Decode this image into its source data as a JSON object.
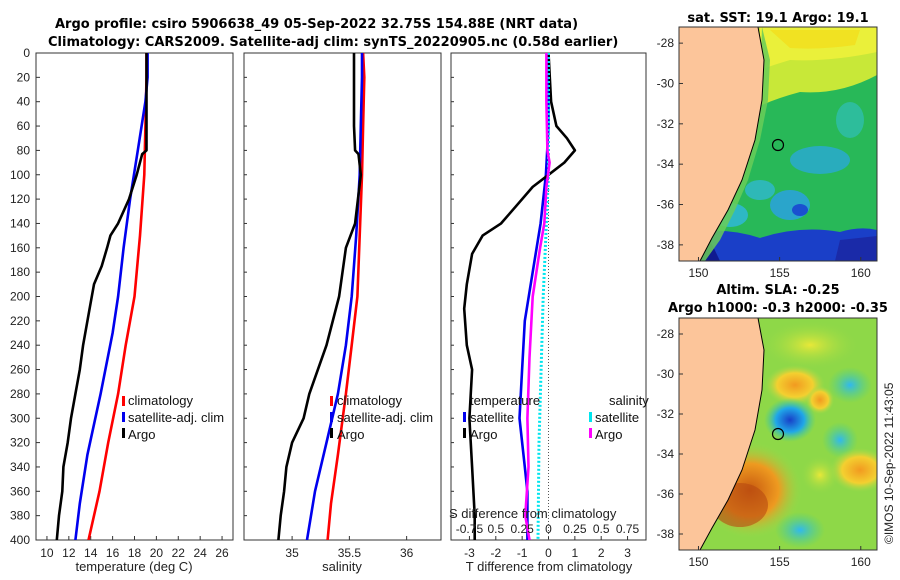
{
  "header": {
    "title_line1": "Argo profile: csiro 5906638_49 05-Sep-2022 32.75S 154.88E (NRT data)",
    "title_line2": "Climatology: CARS2009. Satellite-adj clim: synTS_20220905.nc (0.58d earlier)"
  },
  "watermark": "©IMOS 10-Sep-2022 11:43:05",
  "colors": {
    "climatology": "#ff0000",
    "satellite_adj": "#0000ee",
    "argo": "#000000",
    "sal_sat": "#00e5ee",
    "sal_argo": "#ff00ff",
    "land": "#fcc59a"
  },
  "chart_data": [
    {
      "type": "line",
      "title": "",
      "xlabel": "temperature (deg C)",
      "ylabel": "",
      "xlim": [
        9,
        27
      ],
      "ylim": [
        400,
        0
      ],
      "xticks": [
        "10",
        "12",
        "14",
        "16",
        "18",
        "20",
        "22",
        "24",
        "26"
      ],
      "xtick_values": [
        10,
        12,
        14,
        16,
        18,
        20,
        22,
        24,
        26
      ],
      "yticks": [
        "0",
        "20",
        "40",
        "60",
        "80",
        "100",
        "120",
        "140",
        "160",
        "180",
        "200",
        "220",
        "240",
        "260",
        "280",
        "300",
        "320",
        "340",
        "360",
        "380",
        "400"
      ],
      "legend": [
        "climatology",
        "satellite-adj. clim",
        "Argo"
      ],
      "legend_position": "bottom-right",
      "series": [
        {
          "name": "climatology",
          "color": "#ff0000",
          "points": [
            [
              19.1,
              0
            ],
            [
              19.1,
              20
            ],
            [
              19.0,
              60
            ],
            [
              18.9,
              100
            ],
            [
              18.5,
              150
            ],
            [
              18.0,
              200
            ],
            [
              17.2,
              240
            ],
            [
              16.5,
              280
            ],
            [
              15.6,
              320
            ],
            [
              14.8,
              360
            ],
            [
              13.8,
              400
            ]
          ]
        },
        {
          "name": "satellite-adj. clim",
          "color": "#0000ee",
          "points": [
            [
              19.2,
              0
            ],
            [
              19.2,
              20
            ],
            [
              19.0,
              40
            ],
            [
              18.3,
              80
            ],
            [
              17.6,
              120
            ],
            [
              17.0,
              160
            ],
            [
              16.5,
              200
            ],
            [
              16.0,
              230
            ],
            [
              14.9,
              280
            ],
            [
              13.7,
              330
            ],
            [
              13.0,
              370
            ],
            [
              12.6,
              400
            ]
          ]
        },
        {
          "name": "Argo",
          "color": "#000000",
          "points": [
            [
              19.1,
              0
            ],
            [
              19.1,
              20
            ],
            [
              19.1,
              60
            ],
            [
              19.1,
              80
            ],
            [
              18.7,
              83
            ],
            [
              18.2,
              100
            ],
            [
              17.5,
              120
            ],
            [
              16.5,
              140
            ],
            [
              15.8,
              150
            ],
            [
              15.5,
              160
            ],
            [
              15.0,
              175
            ],
            [
              14.3,
              190
            ],
            [
              13.9,
              210
            ],
            [
              13.3,
              240
            ],
            [
              13.0,
              260
            ],
            [
              12.6,
              280
            ],
            [
              12.2,
              300
            ],
            [
              11.9,
              320
            ],
            [
              11.5,
              340
            ],
            [
              11.4,
              360
            ],
            [
              11.1,
              380
            ],
            [
              10.9,
              400
            ]
          ]
        }
      ]
    },
    {
      "type": "line",
      "title": "",
      "xlabel": "salinity",
      "ylabel": "",
      "xlim": [
        34.58,
        36.3
      ],
      "ylim": [
        400,
        0
      ],
      "xticks": [
        "35",
        "35.5",
        "36"
      ],
      "xtick_values": [
        35,
        35.5,
        36
      ],
      "legend": [
        "climatology",
        "satellite-adj. clim",
        "Argo"
      ],
      "legend_position": "bottom-right",
      "series": [
        {
          "name": "climatology",
          "color": "#ff0000",
          "points": [
            [
              35.62,
              0
            ],
            [
              35.63,
              20
            ],
            [
              35.62,
              60
            ],
            [
              35.61,
              100
            ],
            [
              35.59,
              150
            ],
            [
              35.57,
              200
            ],
            [
              35.52,
              240
            ],
            [
              35.47,
              280
            ],
            [
              35.4,
              330
            ],
            [
              35.34,
              370
            ],
            [
              35.31,
              400
            ]
          ]
        },
        {
          "name": "satellite-adj. clim",
          "color": "#0000ee",
          "points": [
            [
              35.61,
              0
            ],
            [
              35.61,
              20
            ],
            [
              35.6,
              60
            ],
            [
              35.59,
              100
            ],
            [
              35.56,
              150
            ],
            [
              35.52,
              200
            ],
            [
              35.47,
              240
            ],
            [
              35.4,
              280
            ],
            [
              35.3,
              320
            ],
            [
              35.2,
              360
            ],
            [
              35.13,
              400
            ]
          ]
        },
        {
          "name": "Argo",
          "color": "#000000",
          "points": [
            [
              35.54,
              0
            ],
            [
              35.54,
              20
            ],
            [
              35.54,
              60
            ],
            [
              35.55,
              80
            ],
            [
              35.58,
              83
            ],
            [
              35.6,
              100
            ],
            [
              35.55,
              140
            ],
            [
              35.47,
              160
            ],
            [
              35.41,
              200
            ],
            [
              35.3,
              240
            ],
            [
              35.15,
              280
            ],
            [
              35.1,
              300
            ],
            [
              35.0,
              320
            ],
            [
              34.95,
              340
            ],
            [
              34.93,
              360
            ],
            [
              34.9,
              380
            ],
            [
              34.88,
              400
            ]
          ]
        }
      ]
    },
    {
      "type": "line",
      "title": "",
      "xlabel": "T difference from climatology",
      "xlabel_top": "S difference from climatology",
      "ylabel": "",
      "xlim": [
        -3.7,
        3.7
      ],
      "ylim": [
        400,
        0
      ],
      "xticks": [
        "-3",
        "-2",
        "-1",
        "0",
        "1",
        "2",
        "3"
      ],
      "xtick_values": [
        -3,
        -2,
        -1,
        0,
        1,
        2,
        3
      ],
      "s_xticks": [
        "-0.75",
        "0.5",
        "0.25",
        "0",
        "0.25",
        "0.5",
        "0.75"
      ],
      "s_xlim": [
        -0.925,
        0.925
      ],
      "legend_temperature_header": "temperature",
      "legend_salinity_header": "salinity",
      "legend": [
        "satellite",
        "Argo",
        "satellite",
        "Argo"
      ],
      "legend_position": "bottom-center",
      "series": [
        {
          "name": "temperature satellite",
          "color": "#0000ee",
          "points": [
            [
              0.0,
              0
            ],
            [
              0.0,
              60
            ],
            [
              -0.1,
              100
            ],
            [
              -0.3,
              140
            ],
            [
              -0.6,
              180
            ],
            [
              -0.9,
              220
            ],
            [
              -1.0,
              260
            ],
            [
              -1.1,
              300
            ],
            [
              -0.9,
              340
            ],
            [
              -0.8,
              360
            ],
            [
              -0.8,
              400
            ]
          ]
        },
        {
          "name": "temperature Argo",
          "color": "#000000",
          "points": [
            [
              0.0,
              0
            ],
            [
              0.1,
              40
            ],
            [
              0.3,
              60
            ],
            [
              0.7,
              70
            ],
            [
              1.0,
              80
            ],
            [
              0.6,
              90
            ],
            [
              0.0,
              100
            ],
            [
              -0.6,
              110
            ],
            [
              -1.2,
              125
            ],
            [
              -1.8,
              140
            ],
            [
              -2.5,
              150
            ],
            [
              -2.9,
              165
            ],
            [
              -3.1,
              190
            ],
            [
              -3.2,
              210
            ],
            [
              -3.1,
              240
            ],
            [
              -2.9,
              260
            ],
            [
              -3.0,
              300
            ],
            [
              -2.9,
              340
            ],
            [
              -2.8,
              380
            ],
            [
              -2.8,
              400
            ]
          ]
        },
        {
          "name": "salinity satellite",
          "color": "#00e5ee",
          "dotted": true,
          "points": [
            [
              0.0,
              0
            ],
            [
              0.0,
              100
            ],
            [
              -0.02,
              140
            ],
            [
              -0.05,
              200
            ],
            [
              -0.07,
              260
            ],
            [
              -0.09,
              320
            ],
            [
              -0.1,
              400
            ]
          ]
        },
        {
          "name": "salinity Argo",
          "color": "#ff00ff",
          "points": [
            [
              -0.02,
              0
            ],
            [
              -0.02,
              40
            ],
            [
              -0.01,
              80
            ],
            [
              0.01,
              90
            ],
            [
              -0.02,
              110
            ],
            [
              -0.04,
              140
            ],
            [
              -0.08,
              160
            ],
            [
              -0.15,
              200
            ],
            [
              -0.18,
              250
            ],
            [
              -0.2,
              300
            ],
            [
              -0.19,
              340
            ],
            [
              -0.22,
              380
            ],
            [
              -0.18,
              400
            ]
          ]
        }
      ]
    },
    {
      "type": "heatmap",
      "title": "sat. SST: 19.1 Argo: 19.1",
      "xlim": [
        148.8,
        161.0
      ],
      "ylim": [
        -38.8,
        -27.2
      ],
      "xticks": [
        "150",
        "155",
        "160"
      ],
      "xtick_values": [
        150,
        155,
        160
      ],
      "yticks": [
        "-28",
        "-30",
        "-32",
        "-34",
        "-36",
        "-38"
      ],
      "ytick_values": [
        -28,
        -30,
        -32,
        -34,
        -36,
        -38
      ],
      "marker": {
        "lon": 154.88,
        "lat": -32.75
      }
    },
    {
      "type": "heatmap",
      "title": "Altim. SLA: -0.25",
      "subtitle": "Argo h1000: -0.3 h2000: -0.35",
      "xlim": [
        148.8,
        161.0
      ],
      "ylim": [
        -38.8,
        -27.2
      ],
      "xticks": [
        "150",
        "155",
        "160"
      ],
      "xtick_values": [
        150,
        155,
        160
      ],
      "yticks": [
        "-28",
        "-30",
        "-32",
        "-34",
        "-36",
        "-38"
      ],
      "ytick_values": [
        -28,
        -30,
        -32,
        -34,
        -36,
        -38
      ],
      "marker": {
        "lon": 154.88,
        "lat": -32.75
      }
    }
  ]
}
